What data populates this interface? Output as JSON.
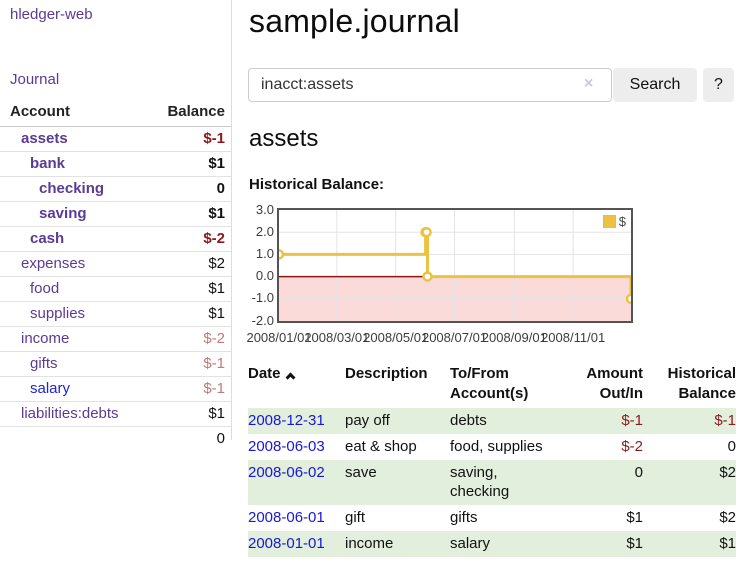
{
  "sidebar": {
    "app_title": "hledger-web",
    "nav": {
      "journal_label": "Journal"
    },
    "accounts_table": {
      "headers": {
        "account": "Account",
        "balance": "Balance"
      },
      "rows": [
        {
          "name": "assets",
          "indent": 1,
          "bold": true,
          "balance": "$-1",
          "tone": "neg-strong",
          "link": "purple"
        },
        {
          "name": "bank",
          "indent": 2,
          "bold": true,
          "balance": "$1",
          "tone": "normal",
          "link": "purple"
        },
        {
          "name": "checking",
          "indent": 3,
          "bold": true,
          "balance": "0",
          "tone": "normal",
          "link": "purple"
        },
        {
          "name": "saving",
          "indent": 3,
          "bold": true,
          "balance": "$1",
          "tone": "normal",
          "link": "purple"
        },
        {
          "name": "cash",
          "indent": 2,
          "bold": true,
          "balance": "$-2",
          "tone": "neg-strong",
          "link": "purple"
        },
        {
          "name": "expenses",
          "indent": 1,
          "bold": false,
          "balance": "$2",
          "tone": "normal",
          "link": "purple"
        },
        {
          "name": "food",
          "indent": 2,
          "bold": false,
          "balance": "$1",
          "tone": "normal",
          "link": "purple"
        },
        {
          "name": "supplies",
          "indent": 2,
          "bold": false,
          "balance": "$1",
          "tone": "normal",
          "link": "purple"
        },
        {
          "name": "income",
          "indent": 1,
          "bold": false,
          "balance": "$-2",
          "tone": "neg-soft",
          "link": "purple"
        },
        {
          "name": "gifts",
          "indent": 2,
          "bold": false,
          "balance": "$-1",
          "tone": "neg-soft",
          "link": "purple"
        },
        {
          "name": "salary",
          "indent": 2,
          "bold": false,
          "balance": "$-1",
          "tone": "neg-soft",
          "link": "blue"
        },
        {
          "name": "liabilities:debts",
          "indent": 1,
          "bold": false,
          "balance": "$1",
          "tone": "normal",
          "link": "purple"
        }
      ],
      "total": "0"
    }
  },
  "header": {
    "title": "sample.journal"
  },
  "search": {
    "query": "inacct:assets",
    "clear_icon": "×",
    "search_label": "Search",
    "help_label": "?"
  },
  "account_page": {
    "heading": "assets",
    "chart_label": "Historical Balance:"
  },
  "chart_data": {
    "type": "line",
    "line_style": "step",
    "title": "Historical Balance:",
    "ylim": [
      -2,
      3
    ],
    "x_range_days": [
      0,
      365
    ],
    "y_ticks": [
      {
        "label": "3.0",
        "value": 3
      },
      {
        "label": "2.0",
        "value": 2
      },
      {
        "label": "1.0",
        "value": 1
      },
      {
        "label": "0.0",
        "value": 0
      },
      {
        "label": "-1.0",
        "value": -1
      },
      {
        "label": "-2.0",
        "value": -2
      }
    ],
    "x_ticks": [
      {
        "label": "2008/01/01",
        "day": 0
      },
      {
        "label": "2008/03/01",
        "day": 60
      },
      {
        "label": "2008/05/01",
        "day": 121
      },
      {
        "label": "2008/07/01",
        "day": 182
      },
      {
        "label": "2008/09/01",
        "day": 244
      },
      {
        "label": "2008/11/01",
        "day": 305
      }
    ],
    "series": [
      {
        "name": "$",
        "color": "#edc240",
        "points": [
          {
            "date": "2008-01-01",
            "day": 0,
            "value": 1
          },
          {
            "date": "2008-06-01",
            "day": 152,
            "value": 2
          },
          {
            "date": "2008-06-02",
            "day": 153,
            "value": 2
          },
          {
            "date": "2008-06-03",
            "day": 154,
            "value": 0
          },
          {
            "date": "2008-12-31",
            "day": 365,
            "value": -1
          }
        ]
      }
    ],
    "legend": {
      "label": "$",
      "position": "top-right"
    },
    "grid": true,
    "gridline_color": "#e4e4e4",
    "negative_region_fill": "#fbdada",
    "zero_line_color": "#8b1616"
  },
  "register_table": {
    "headers": {
      "date": "Date",
      "description": "Description",
      "accounts_l1": "To/From",
      "accounts_l2": "Account(s)",
      "amount_l1": "Amount",
      "amount_l2": "Out/In",
      "balance_l1": "Historical",
      "balance_l2": "Balance"
    },
    "sort_icon": "chevron-up",
    "rows": [
      {
        "date": "2008-12-31",
        "description": "pay off",
        "accounts": "debts",
        "amount": "$-1",
        "balance": "$-1",
        "amount_neg": true,
        "balance_neg": true
      },
      {
        "date": "2008-06-03",
        "description": "eat & shop",
        "accounts": "food, supplies",
        "amount": "$-2",
        "balance": "0",
        "amount_neg": true,
        "balance_neg": false
      },
      {
        "date": "2008-06-02",
        "description": "save",
        "accounts": "saving, checking",
        "amount": "0",
        "balance": "$2",
        "amount_neg": false,
        "balance_neg": false
      },
      {
        "date": "2008-06-01",
        "description": "gift",
        "accounts": "gifts",
        "amount": "$1",
        "balance": "$2",
        "amount_neg": false,
        "balance_neg": false
      },
      {
        "date": "2008-01-01",
        "description": "income",
        "accounts": "salary",
        "amount": "$1",
        "balance": "$1",
        "amount_neg": false,
        "balance_neg": false
      }
    ]
  },
  "colors": {
    "link_purple": "#5a3b96",
    "link_blue": "#2323d8",
    "date_link_blue": "#1717d6",
    "negative_strong": "#8b1a1a",
    "negative_soft": "#bd7b7b",
    "row_stripe_green": "#e3efdd",
    "series_gold": "#edc240",
    "button_gray": "#ededed"
  }
}
